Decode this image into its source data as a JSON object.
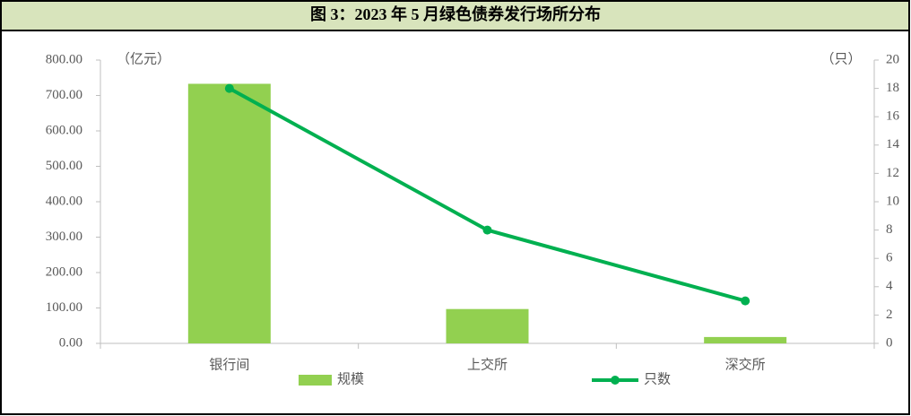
{
  "chart_data": {
    "type": "bar_line",
    "title": "图 3：2023 年 5 月绿色债券发行场所分布",
    "y_unit": "（亿元）",
    "y2_unit": "（只）",
    "categories": [
      "银行间",
      "上交所",
      "深交所"
    ],
    "series": [
      {
        "name": "规模",
        "type": "bar",
        "color": "#92d050",
        "values": [
          733,
          97,
          18
        ]
      },
      {
        "name": "只数",
        "type": "line",
        "axis": "y2",
        "color": "#00b050",
        "values": [
          18,
          8,
          3
        ]
      }
    ],
    "ylim": [
      0,
      800
    ],
    "yticks": [
      {
        "value": 0,
        "label": "0.00"
      },
      {
        "value": 100,
        "label": "100.00"
      },
      {
        "value": 200,
        "label": "200.00"
      },
      {
        "value": 300,
        "label": "300.00"
      },
      {
        "value": 400,
        "label": "400.00"
      },
      {
        "value": 500,
        "label": "500.00"
      },
      {
        "value": 600,
        "label": "600.00"
      },
      {
        "value": 700,
        "label": "700.00"
      },
      {
        "value": 800,
        "label": "800.00"
      }
    ],
    "y2lim": [
      0,
      20
    ],
    "y2ticks": [
      0,
      2,
      4,
      6,
      8,
      10,
      12,
      14,
      16,
      18,
      20
    ],
    "grid": false,
    "legend": "bottom"
  }
}
